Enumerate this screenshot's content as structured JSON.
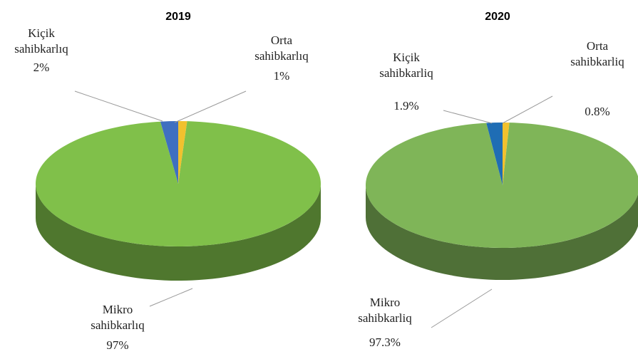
{
  "chart_data": [
    {
      "type": "pie",
      "title": "2019",
      "categories": [
        "Kiçik sahibkarlıq",
        "Orta sahibkarlıq",
        "Mikro sahibkarlıq"
      ],
      "values": [
        2,
        1,
        97
      ],
      "value_labels": [
        "2%",
        "1%",
        "97%"
      ],
      "colors": [
        "#3f6fc0",
        "#f2c12e",
        "#80c04a"
      ]
    },
    {
      "type": "pie",
      "title": "2020",
      "categories": [
        "Kiçik sahibkarliq",
        "Orta sahibkarliq",
        "Mikro sahibkarliq"
      ],
      "values": [
        1.9,
        0.8,
        97.3
      ],
      "value_labels": [
        "1.9%",
        "0.8%",
        "97.3%"
      ],
      "colors": [
        "#1f6db4",
        "#f2c12e",
        "#7fb558"
      ]
    }
  ]
}
